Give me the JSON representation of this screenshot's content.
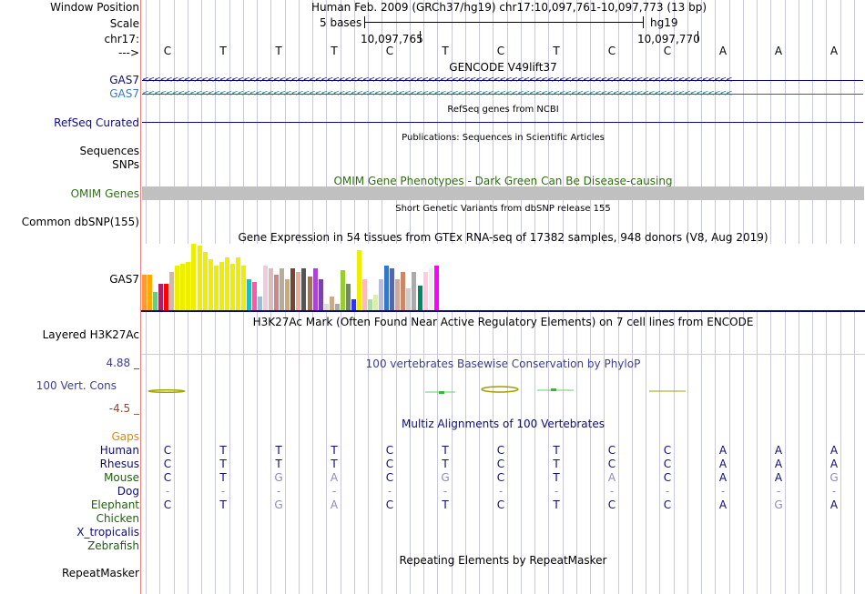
{
  "colors": {
    "navy": "#0c0c78",
    "teal": "#0c7a7a",
    "omim_green": "#2f6e16",
    "conservation_blue": "#3c3c9a",
    "gaps_orange": "#e08a00",
    "species_green": "#1e5e0e",
    "grid": "#c8c8de",
    "separator": "#f08080"
  },
  "left_labels": {
    "window_position": "Window Position",
    "scale": "Scale",
    "chrom": "chr17:",
    "strand": "--->",
    "gas7_1": "GAS7",
    "gas7_2": "GAS7",
    "refseq": "RefSeq Curated",
    "sequences": "Sequences",
    "snps": "SNPs",
    "omim": "OMIM Genes",
    "dbsnp": "Common dbSNP(155)",
    "gtex_gene": "GAS7",
    "h3k27ac": "Layered H3K27Ac",
    "phylop_max": "4.88 _",
    "phylop": "100 Vert. Cons",
    "phylop_min": "-4.5 _",
    "gaps": "Gaps",
    "repeatmasker": "RepeatMasker"
  },
  "ruler": {
    "position_text": "Human Feb. 2009 (GRCh37/hg19)   chr17:10,097,761-10,097,773 (13 bp)",
    "scale_text": "5 bases",
    "assembly": "hg19",
    "tick1": "10,097,765",
    "tick2": "10,097,770"
  },
  "bases": [
    "C",
    "T",
    "T",
    "T",
    "C",
    "T",
    "C",
    "T",
    "C",
    "C",
    "A",
    "A",
    "A"
  ],
  "track_titles": {
    "gencode": "GENCODE V49lift37",
    "refseq": "RefSeq genes from NCBI",
    "publications": "Publications: Sequences in Scientific Articles",
    "omim": "OMIM Gene Phenotypes - Dark Green Can Be Disease-causing",
    "dbsnp": "Short Genetic Variants from dbSNP release 155",
    "gtex": "Gene Expression in 54 tissues from GTEx RNA-seq of 17382 samples, 948 donors (V8, Aug 2019)",
    "h3k27ac": "H3K27Ac Mark (Often Found Near Active Regulatory Elements) on 7 cell lines from ENCODE",
    "phylop": "100 vertebrates Basewise Conservation by PhyloP",
    "multiz": "Multiz Alignments of 100 Vertebrates",
    "repeatmasker": "Repeating Elements by RepeatMasker"
  },
  "gencode_arrows": "<<<<<<<<<<<<<<<<<<<<<<<<<<<<<<<<<<<<<<<<<<<<<<<<<<<<<<<<<<<<<<<<<<<<<<<<<<<<<<<<<<<<<<<<<<<<<<<<<<<",
  "gtex_bars": [
    {
      "level": 0.53,
      "color": "#ff9933"
    },
    {
      "level": 0.53,
      "color": "#ffaa00"
    },
    {
      "level": 0.27,
      "color": "#66cc88"
    },
    {
      "level": 0.4,
      "color": "#aa2266"
    },
    {
      "level": 0.4,
      "color": "#ff0000"
    },
    {
      "level": 0.57,
      "color": "#ccbbaa"
    },
    {
      "level": 0.67,
      "color": "#eeee00"
    },
    {
      "level": 0.7,
      "color": "#eeee00"
    },
    {
      "level": 0.73,
      "color": "#eeee00"
    },
    {
      "level": 1.0,
      "color": "#eeee00"
    },
    {
      "level": 0.97,
      "color": "#eeee00"
    },
    {
      "level": 0.87,
      "color": "#eeee00"
    },
    {
      "level": 0.77,
      "color": "#eeee00"
    },
    {
      "level": 0.67,
      "color": "#eeee00"
    },
    {
      "level": 0.73,
      "color": "#eeee00"
    },
    {
      "level": 0.8,
      "color": "#eeee00"
    },
    {
      "level": 0.7,
      "color": "#eeee00"
    },
    {
      "level": 0.8,
      "color": "#eeee00"
    },
    {
      "level": 0.67,
      "color": "#eeee00"
    },
    {
      "level": 0.47,
      "color": "#00cccc"
    },
    {
      "level": 0.43,
      "color": "#ff55aa"
    },
    {
      "level": 0.2,
      "color": "#99bbdd"
    },
    {
      "level": 0.67,
      "color": "#eeccdd"
    },
    {
      "level": 0.63,
      "color": "#ddbbbb"
    },
    {
      "level": 0.53,
      "color": "#cc8888"
    },
    {
      "level": 0.63,
      "color": "#bbaa99"
    },
    {
      "level": 0.47,
      "color": "#ccaa77"
    },
    {
      "level": 0.63,
      "color": "#774433"
    },
    {
      "level": 0.57,
      "color": "#eeaa99"
    },
    {
      "level": 0.63,
      "color": "#555555"
    },
    {
      "level": 0.5,
      "color": "#997755"
    },
    {
      "level": 0.63,
      "color": "#aa44dd"
    },
    {
      "level": 0.47,
      "color": "#7744aa"
    },
    {
      "level": 0.1,
      "color": "#dddddd"
    },
    {
      "level": 0.2,
      "color": "#ccaa88"
    },
    {
      "level": 0.1,
      "color": "#aaaaaa"
    },
    {
      "level": 0.6,
      "color": "#99cc33"
    },
    {
      "level": 0.4,
      "color": "#778866"
    },
    {
      "level": 0.17,
      "color": "#3333ff"
    },
    {
      "level": 0.9,
      "color": "#eeee00"
    },
    {
      "level": 0.47,
      "color": "#ffbbbb"
    },
    {
      "level": 0.17,
      "color": "#aaddaa"
    },
    {
      "level": 0.23,
      "color": "#ddeeaa"
    },
    {
      "level": 0.47,
      "color": "#bbbbdd"
    },
    {
      "level": 0.67,
      "color": "#3377cc"
    },
    {
      "level": 0.63,
      "color": "#5566aa"
    },
    {
      "level": 0.47,
      "color": "#ccaa99"
    },
    {
      "level": 0.57,
      "color": "#cc8866"
    },
    {
      "level": 0.33,
      "color": "#cccccc"
    },
    {
      "level": 0.57,
      "color": "#aaaaaa"
    },
    {
      "level": 0.37,
      "color": "#008866"
    },
    {
      "level": 0.57,
      "color": "#ffccdd"
    },
    {
      "level": 0.63,
      "color": "#eeeeee"
    },
    {
      "level": 0.67,
      "color": "#ff00ff"
    }
  ],
  "multiz": {
    "species": [
      {
        "name": "Human",
        "color": "#0c0c78",
        "bases": [
          "C",
          "T",
          "T",
          "T",
          "C",
          "T",
          "C",
          "T",
          "C",
          "C",
          "A",
          "A",
          "A"
        ]
      },
      {
        "name": "Rhesus",
        "color": "#0c0c78",
        "bases": [
          "C",
          "T",
          "T",
          "T",
          "C",
          "T",
          "C",
          "T",
          "C",
          "C",
          "A",
          "A",
          "A"
        ]
      },
      {
        "name": "Mouse",
        "color": "#1e5e0e",
        "bases": [
          "C",
          "T",
          "G",
          "A",
          "C",
          "G",
          "C",
          "T",
          "A",
          "C",
          "A",
          "A",
          "G"
        ]
      },
      {
        "name": "Dog",
        "color": "#0c0c78",
        "bases": [
          "-",
          "-",
          "-",
          "-",
          "-",
          "-",
          "-",
          "-",
          "-",
          "-",
          "-",
          "-",
          "-"
        ]
      },
      {
        "name": "Elephant",
        "color": "#1e5e0e",
        "bases": [
          "C",
          "T",
          "G",
          "A",
          "C",
          "T",
          "C",
          "T",
          "C",
          "C",
          "A",
          "G",
          "A"
        ]
      },
      {
        "name": "Chicken",
        "color": "#1e5e0e",
        "bases": []
      },
      {
        "name": "X_tropicalis",
        "color": "#0c0c78",
        "bases": []
      },
      {
        "name": "Zebrafish",
        "color": "#1e5e0e",
        "bases": []
      }
    ]
  }
}
